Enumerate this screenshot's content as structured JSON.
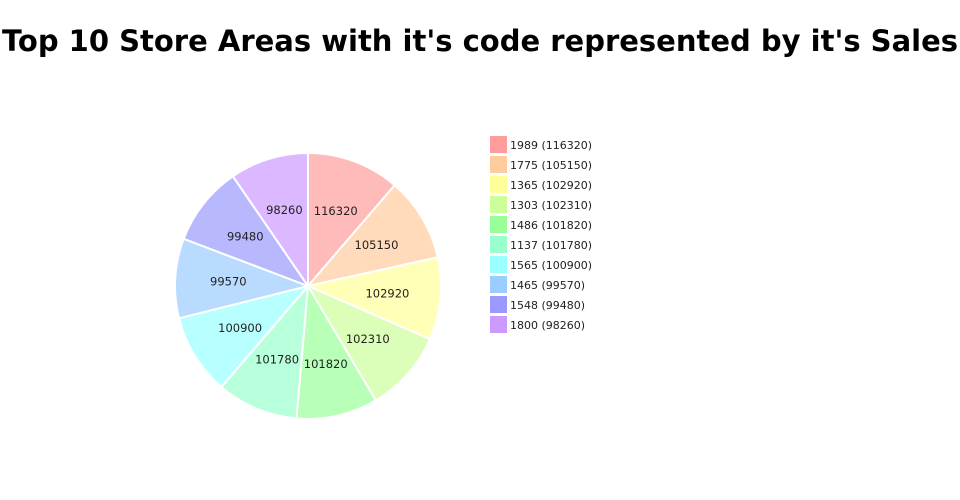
{
  "title": "Top 10 Store Areas with it's code represented by it's Sales",
  "chart_data": {
    "type": "pie",
    "title": "Top 10 Store Areas with it's code represented by it's Sales",
    "legend_position": "right",
    "direction": "clockwise",
    "start_angle": "12 o'clock",
    "slices": [
      {
        "label": "1989",
        "value": 116320,
        "legend": "1989 (116320)",
        "color": "#ff9d9d"
      },
      {
        "label": "1775",
        "value": 105150,
        "legend": "1775 (105150)",
        "color": "#ffcc9e"
      },
      {
        "label": "1365",
        "value": 102920,
        "legend": "1365 (102920)",
        "color": "#ffff99"
      },
      {
        "label": "1303",
        "value": 102310,
        "legend": "1303 (102310)",
        "color": "#ccff99"
      },
      {
        "label": "1486",
        "value": 101820,
        "legend": "1486 (101820)",
        "color": "#99ff99"
      },
      {
        "label": "1137",
        "value": 101780,
        "legend": "1137 (101780)",
        "color": "#99ffcc"
      },
      {
        "label": "1565",
        "value": 100900,
        "legend": "1565 (100900)",
        "color": "#99ffff"
      },
      {
        "label": "1465",
        "value": 99570,
        "legend": "1465 (99570)",
        "color": "#99ccff"
      },
      {
        "label": "1548",
        "value": 99480,
        "legend": "1548 (99480)",
        "color": "#9999ff"
      },
      {
        "label": "1800",
        "value": 98260,
        "legend": "1800 (98260)",
        "color": "#cc99ff"
      }
    ]
  }
}
